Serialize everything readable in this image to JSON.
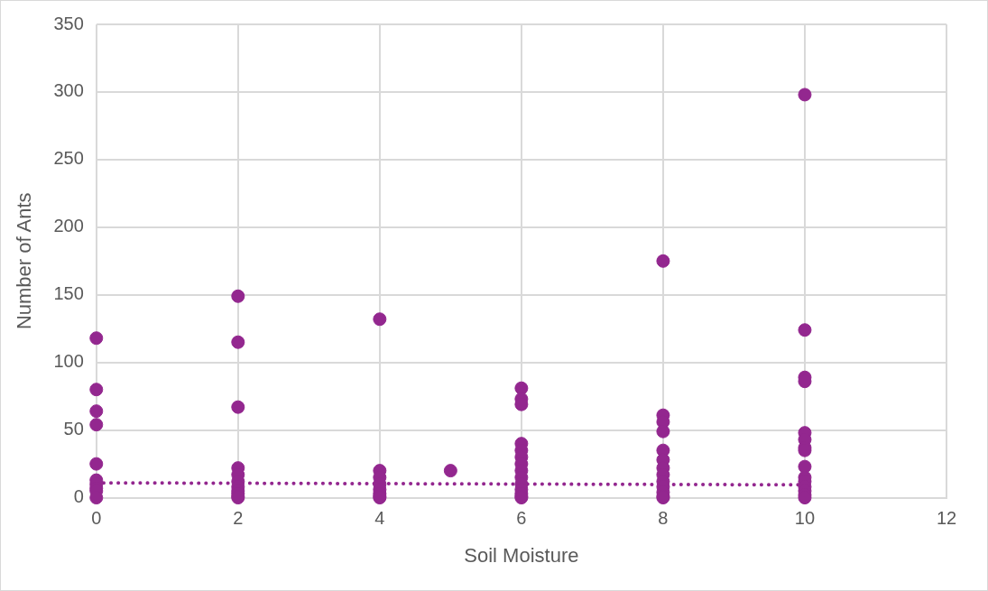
{
  "chart_data": {
    "type": "scatter",
    "xlabel": "Soil Moisture",
    "ylabel": "Number of Ants",
    "xlim": [
      0,
      12
    ],
    "xticks": [
      0,
      2,
      4,
      6,
      8,
      10,
      12
    ],
    "ylim": [
      0,
      350
    ],
    "yticks": [
      0,
      50,
      100,
      150,
      200,
      250,
      300,
      350
    ],
    "grid": true,
    "legend": false,
    "marker": "circle",
    "series": [
      {
        "color": "#93278f",
        "x": [
          0,
          0,
          0,
          0,
          0,
          0,
          0,
          0,
          0,
          0,
          2,
          2,
          2,
          2,
          2,
          2,
          2,
          2,
          2,
          2,
          2,
          4,
          4,
          4,
          4,
          4,
          4,
          4,
          4,
          5,
          6,
          6,
          6,
          6,
          6,
          6,
          6,
          6,
          6,
          6,
          6,
          6,
          6,
          6,
          8,
          8,
          8,
          8,
          8,
          8,
          8,
          8,
          8,
          8,
          8,
          8,
          8,
          10,
          10,
          10,
          10,
          10,
          10,
          10,
          10,
          10,
          10,
          10,
          10,
          10,
          10,
          10
        ],
        "values": [
          118,
          80,
          64,
          54,
          25,
          13,
          10,
          7,
          5,
          0,
          149,
          115,
          67,
          22,
          17,
          12,
          8,
          5,
          3,
          1,
          0,
          132,
          20,
          15,
          10,
          6,
          3,
          1,
          0,
          20,
          81,
          73,
          69,
          40,
          35,
          30,
          25,
          20,
          15,
          10,
          6,
          3,
          1,
          0,
          175,
          61,
          56,
          49,
          35,
          28,
          22,
          17,
          12,
          8,
          4,
          1,
          0,
          298,
          124,
          89,
          86,
          48,
          43,
          37,
          35,
          23,
          15,
          12,
          8,
          5,
          2,
          0
        ]
      },
      {
        "type": "line",
        "color": "#93278f",
        "line_style": "dotted",
        "marker": "none",
        "x": [
          0,
          10
        ],
        "values": [
          11,
          9.5
        ]
      }
    ]
  }
}
